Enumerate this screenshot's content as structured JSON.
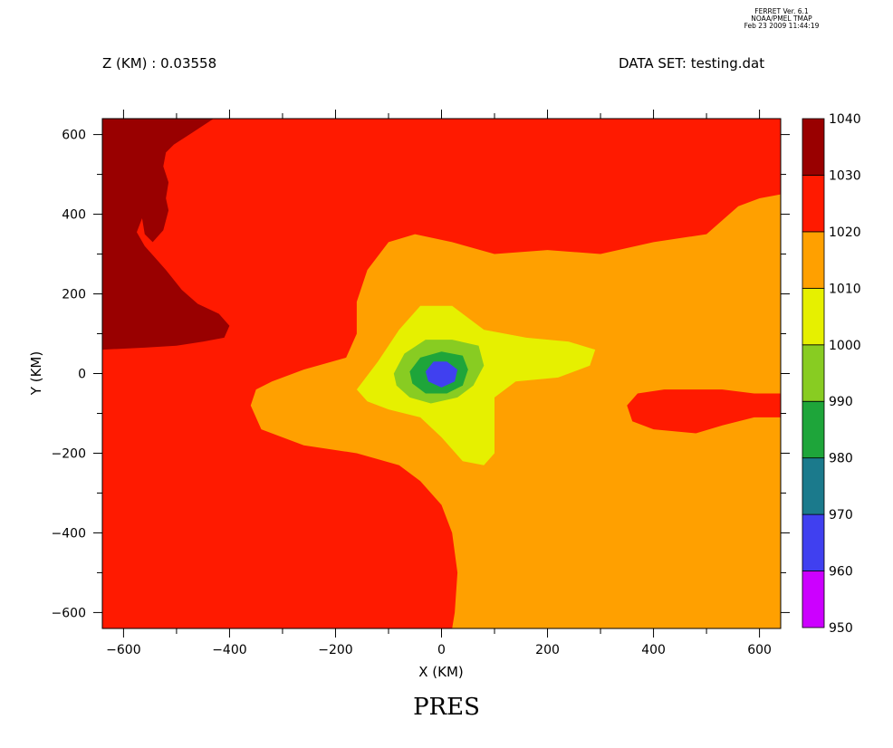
{
  "header": {
    "z_label": "Z (KM) : 0.03558",
    "dataset_label": "DATA SET: testing.dat",
    "version_line1": "FERRET Ver. 6.1",
    "version_line2": "NOAA/PMEL TMAP",
    "version_line3": "Feb 23 2009 11:44:19"
  },
  "chart_data": {
    "type": "heatmap",
    "title": "PRES",
    "xlabel": "X (KM)",
    "ylabel": "Y (KM)",
    "xlim": [
      -640,
      640
    ],
    "ylim": [
      -640,
      640
    ],
    "x_ticks": [
      -600,
      -400,
      -200,
      0,
      200,
      400,
      600
    ],
    "y_ticks": [
      -600,
      -400,
      -200,
      0,
      200,
      400,
      600
    ],
    "x_tick_labels": [
      "−600",
      "−400",
      "−200",
      "0",
      "200",
      "400",
      "600"
    ],
    "y_tick_labels": [
      "−600",
      "−400",
      "−200",
      "0",
      "200",
      "400",
      "600"
    ],
    "colorbar": {
      "levels": [
        950,
        960,
        970,
        980,
        990,
        1000,
        1010,
        1020,
        1030,
        1040
      ],
      "level_labels": [
        "950",
        "960",
        "970",
        "980",
        "990",
        "1000",
        "1010",
        "1020",
        "1030",
        "1040"
      ],
      "colors": [
        "#cc00ff",
        "#4040f0",
        "#1b7a8c",
        "#1ea53a",
        "#88cc22",
        "#e6f000",
        "#ffa000",
        "#ff1a00",
        "#990000"
      ]
    },
    "regions": [
      {
        "name": "1020-1030",
        "level_index": 7,
        "points": [
          [
            -640,
            640
          ],
          [
            640,
            640
          ],
          [
            640,
            -640
          ],
          [
            -640,
            -640
          ]
        ]
      },
      {
        "name": "1030-1040",
        "level_index": 8,
        "points": [
          [
            -640,
            640
          ],
          [
            -430,
            640
          ],
          [
            -470,
            605
          ],
          [
            -505,
            575
          ],
          [
            -520,
            555
          ],
          [
            -525,
            520
          ],
          [
            -515,
            480
          ],
          [
            -520,
            440
          ],
          [
            -515,
            410
          ],
          [
            -525,
            360
          ],
          [
            -545,
            330
          ],
          [
            -560,
            350
          ],
          [
            -565,
            390
          ],
          [
            -575,
            355
          ],
          [
            -560,
            320
          ],
          [
            -540,
            290
          ],
          [
            -520,
            260
          ],
          [
            -490,
            210
          ],
          [
            -460,
            175
          ],
          [
            -420,
            150
          ],
          [
            -400,
            120
          ],
          [
            -410,
            90
          ],
          [
            -450,
            80
          ],
          [
            -500,
            70
          ],
          [
            -560,
            65
          ],
          [
            -640,
            60
          ]
        ]
      },
      {
        "name": "1010-1020",
        "level_index": 6,
        "points": [
          [
            -350,
            -40
          ],
          [
            -320,
            -20
          ],
          [
            -260,
            10
          ],
          [
            -180,
            40
          ],
          [
            -160,
            100
          ],
          [
            -160,
            180
          ],
          [
            -140,
            260
          ],
          [
            -100,
            330
          ],
          [
            -50,
            350
          ],
          [
            20,
            330
          ],
          [
            100,
            300
          ],
          [
            200,
            310
          ],
          [
            300,
            300
          ],
          [
            400,
            330
          ],
          [
            500,
            350
          ],
          [
            560,
            420
          ],
          [
            600,
            440
          ],
          [
            640,
            450
          ],
          [
            640,
            -50
          ],
          [
            590,
            -50
          ],
          [
            530,
            -40
          ],
          [
            470,
            -40
          ],
          [
            420,
            -40
          ],
          [
            370,
            -50
          ],
          [
            350,
            -80
          ],
          [
            360,
            -120
          ],
          [
            400,
            -140
          ],
          [
            480,
            -150
          ],
          [
            530,
            -130
          ],
          [
            590,
            -110
          ],
          [
            640,
            -110
          ],
          [
            640,
            -640
          ],
          [
            20,
            -640
          ],
          [
            25,
            -600
          ],
          [
            30,
            -500
          ],
          [
            20,
            -400
          ],
          [
            0,
            -330
          ],
          [
            -40,
            -270
          ],
          [
            -80,
            -230
          ],
          [
            -160,
            -200
          ],
          [
            -260,
            -180
          ],
          [
            -340,
            -140
          ],
          [
            -360,
            -80
          ]
        ]
      },
      {
        "name": "1000-1010",
        "level_index": 5,
        "points": [
          [
            -160,
            -40
          ],
          [
            -120,
            30
          ],
          [
            -80,
            110
          ],
          [
            -40,
            170
          ],
          [
            20,
            170
          ],
          [
            80,
            110
          ],
          [
            160,
            90
          ],
          [
            240,
            80
          ],
          [
            290,
            60
          ],
          [
            280,
            20
          ],
          [
            220,
            -10
          ],
          [
            140,
            -20
          ],
          [
            100,
            -60
          ],
          [
            100,
            -200
          ],
          [
            80,
            -230
          ],
          [
            40,
            -220
          ],
          [
            0,
            -160
          ],
          [
            -40,
            -110
          ],
          [
            -100,
            -90
          ],
          [
            -140,
            -70
          ]
        ]
      },
      {
        "name": "990-1000",
        "level_index": 4,
        "points": [
          [
            -90,
            0
          ],
          [
            -70,
            50
          ],
          [
            -30,
            85
          ],
          [
            20,
            85
          ],
          [
            70,
            70
          ],
          [
            80,
            20
          ],
          [
            60,
            -30
          ],
          [
            30,
            -60
          ],
          [
            -20,
            -75
          ],
          [
            -60,
            -60
          ],
          [
            -85,
            -30
          ]
        ]
      },
      {
        "name": "980-990",
        "level_index": 3,
        "points": [
          [
            -60,
            5
          ],
          [
            -40,
            40
          ],
          [
            0,
            55
          ],
          [
            40,
            45
          ],
          [
            50,
            10
          ],
          [
            40,
            -30
          ],
          [
            10,
            -50
          ],
          [
            -30,
            -50
          ],
          [
            -55,
            -25
          ]
        ]
      },
      {
        "name": "960-970",
        "level_index": 1,
        "points": [
          [
            -30,
            5
          ],
          [
            -15,
            30
          ],
          [
            10,
            30
          ],
          [
            30,
            10
          ],
          [
            25,
            -20
          ],
          [
            0,
            -35
          ],
          [
            -25,
            -20
          ]
        ]
      }
    ]
  }
}
